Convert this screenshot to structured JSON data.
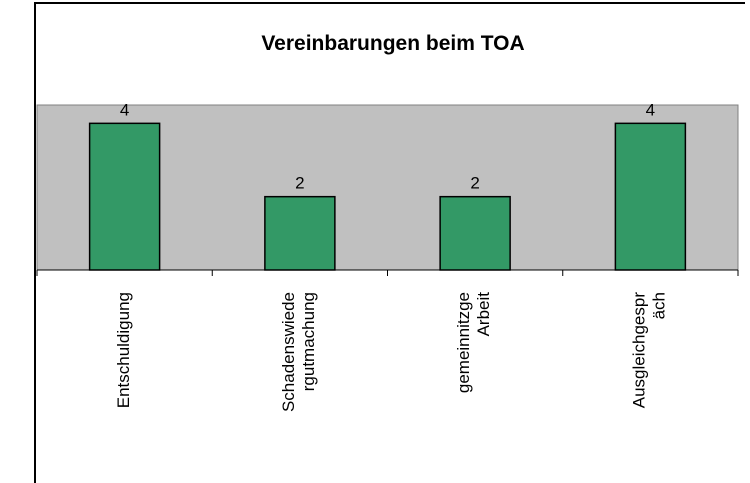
{
  "chart_data": {
    "type": "bar",
    "title": "Vereinbarungen beim TOA",
    "categories": [
      "Entschuldigung",
      "Schadenswiede\nrgutmachung",
      "gemeinnitzge\nArbeit",
      "Ausgleichgespr\näch"
    ],
    "values": [
      4,
      2,
      2,
      4
    ],
    "color": "#339966",
    "plot_background": "#c0c0c0",
    "ylim": [
      0,
      4.5
    ]
  }
}
